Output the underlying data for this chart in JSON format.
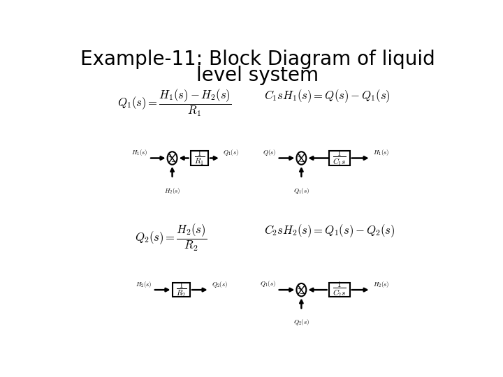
{
  "title_line1": "Example-11: Block Diagram of liquid",
  "title_line2": "level system",
  "title_fontsize": 20,
  "bg_color": "#ffffff",
  "eq1": "$Q_1(s) = \\dfrac{H_1(s) - H_2(s)}{R_1}$",
  "eq2": "$C_1sH_1(s) = Q(s) - Q_1(s)$",
  "eq3": "$Q_2(s) = \\dfrac{H_2(s)}{R_2}$",
  "eq4": "$C_2sH_2(s) = Q_1(s) - Q_2(s)$",
  "label_fontsize": 6.5,
  "eq_fontsize": 12
}
